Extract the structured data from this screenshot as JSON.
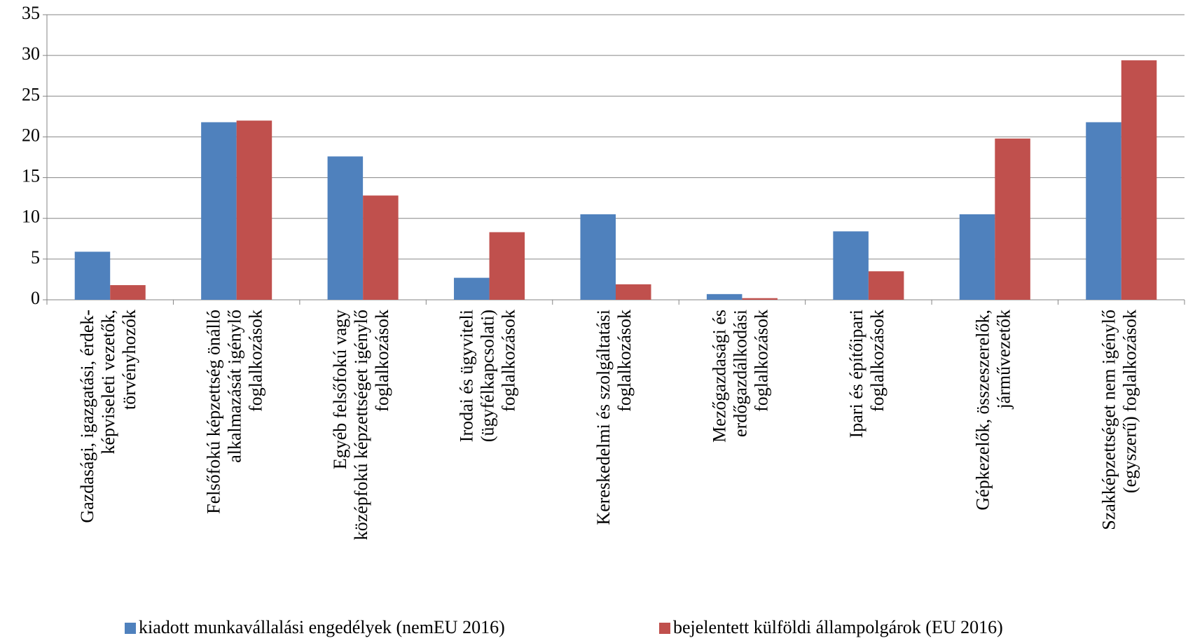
{
  "chart_data": {
    "type": "bar",
    "categories": [
      [
        "Gazdasági, igazgatási, érdek-",
        "képviseleti vezetők,",
        "törvényhozók"
      ],
      [
        "Felsőfokú képzettség önálló",
        "alkalmazását igénylő",
        "foglalkozások"
      ],
      [
        "Egyéb felsőfokú vagy",
        "középfokú képzettséget igénylő",
        "foglalkozások"
      ],
      [
        "Irodai és ügyviteli",
        "(ügyfélkapcsolati)",
        "foglalkozások"
      ],
      [
        "Kereskedelmi és szolgáltatási",
        "foglalkozások"
      ],
      [
        "Mezőgazdasági és",
        "erdőgazdálkodási",
        "foglalkozások"
      ],
      [
        "Ipari és építőipari",
        "foglalkozások"
      ],
      [
        "Gépkezelők, összeszerelők,",
        "járművezetők"
      ],
      [
        "Szakképzettséget nem igénylő",
        "(egyszerű) foglalkozások"
      ]
    ],
    "series": [
      {
        "name": "kiadott munkavállalási engedélyek (nemEU 2016)",
        "color": "#4f81bd",
        "values": [
          5.9,
          21.8,
          17.6,
          2.7,
          10.5,
          0.7,
          8.4,
          10.5,
          21.8
        ]
      },
      {
        "name": "bejelentett külföldi állampolgárok (EU 2016)",
        "color": "#c0504d",
        "values": [
          1.8,
          22.0,
          12.8,
          8.3,
          1.9,
          0.2,
          3.5,
          19.8,
          29.4
        ]
      }
    ],
    "ylim": [
      0,
      35
    ],
    "yticks": [
      0,
      5,
      10,
      15,
      20,
      25,
      30,
      35
    ],
    "grid": true,
    "legend": "bottom"
  }
}
